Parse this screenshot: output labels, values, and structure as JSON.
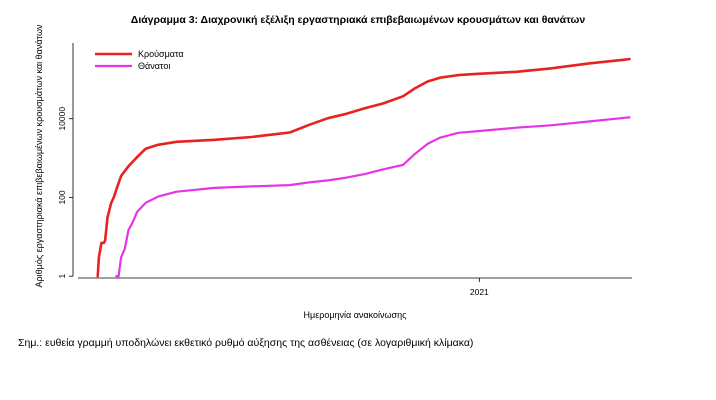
{
  "note": "Σημ.: ευθεία γραμμή υποδηλώνει εκθετικό ρυθμό αύξησης της ασθένειας (σε λογαριθμική κλίμακα)",
  "chart_data": {
    "type": "line",
    "title": "Διάγραμμα 3: Διαχρονική εξέλιξη εργαστηριακά επιβεβαιωμένων κρουσμάτων και θανάτων",
    "xlabel": "Ημερομηνία ανακοίνωσης",
    "ylabel": "Αριθμός εργαστηριακά επιβεβαιωμένων κρουσμάτων και θανάτων",
    "yscale": "log",
    "ylim": [
      0.8,
      1000000
    ],
    "xlim": [
      "2020-02-10",
      "2021-05-05"
    ],
    "x_ticks": [
      {
        "value": "2021-01-01",
        "label": "2021"
      }
    ],
    "y_ticks": [
      {
        "value": 1,
        "label": "1"
      },
      {
        "value": 100,
        "label": "100"
      },
      {
        "value": 10000,
        "label": "10000"
      }
    ],
    "legend_position": "top-left",
    "grid": false,
    "series": [
      {
        "name": "Κρούσματα",
        "color": "#e8231f",
        "points": [
          [
            "2020-02-26",
            1
          ],
          [
            "2020-02-27",
            3
          ],
          [
            "2020-02-29",
            7
          ],
          [
            "2020-03-02",
            7
          ],
          [
            "2020-03-03",
            8
          ],
          [
            "2020-03-05",
            31
          ],
          [
            "2020-03-08",
            73
          ],
          [
            "2020-03-10",
            99
          ],
          [
            "2020-03-13",
            190
          ],
          [
            "2020-03-16",
            350
          ],
          [
            "2020-03-22",
            624
          ],
          [
            "2020-03-29",
            1061
          ],
          [
            "2020-04-05",
            1735
          ],
          [
            "2020-04-15",
            2170
          ],
          [
            "2020-04-30",
            2591
          ],
          [
            "2020-05-31",
            2918
          ],
          [
            "2020-06-30",
            3432
          ],
          [
            "2020-07-15",
            3910
          ],
          [
            "2020-07-31",
            4477
          ],
          [
            "2020-08-15",
            6858
          ],
          [
            "2020-08-31",
            10317
          ],
          [
            "2020-09-15",
            13310
          ],
          [
            "2020-09-30",
            18475
          ],
          [
            "2020-10-15",
            24551
          ],
          [
            "2020-10-31",
            37196
          ],
          [
            "2020-11-10",
            60000
          ],
          [
            "2020-11-20",
            88000
          ],
          [
            "2020-11-30",
            110000
          ],
          [
            "2020-12-15",
            128000
          ],
          [
            "2020-12-31",
            138850
          ],
          [
            "2021-01-31",
            156000
          ],
          [
            "2021-02-28",
            190000
          ],
          [
            "2021-03-31",
            255000
          ],
          [
            "2021-04-30",
            318000
          ],
          [
            "2021-05-03",
            330000
          ]
        ]
      },
      {
        "name": "Θάνατοι",
        "color": "#e535e5",
        "points": [
          [
            "2020-03-12",
            1
          ],
          [
            "2020-03-14",
            1
          ],
          [
            "2020-03-16",
            3
          ],
          [
            "2020-03-19",
            5
          ],
          [
            "2020-03-22",
            15
          ],
          [
            "2020-03-25",
            22
          ],
          [
            "2020-03-29",
            43
          ],
          [
            "2020-04-05",
            73
          ],
          [
            "2020-04-15",
            105
          ],
          [
            "2020-04-30",
            140
          ],
          [
            "2020-05-31",
            175
          ],
          [
            "2020-06-30",
            191
          ],
          [
            "2020-07-31",
            206
          ],
          [
            "2020-08-15",
            240
          ],
          [
            "2020-08-31",
            271
          ],
          [
            "2020-09-15",
            320
          ],
          [
            "2020-09-30",
            393
          ],
          [
            "2020-10-15",
            520
          ],
          [
            "2020-10-31",
            673
          ],
          [
            "2020-11-10",
            1300
          ],
          [
            "2020-11-20",
            2300
          ],
          [
            "2020-11-30",
            3300
          ],
          [
            "2020-12-15",
            4400
          ],
          [
            "2020-12-31",
            4838
          ],
          [
            "2021-01-31",
            5900
          ],
          [
            "2021-02-28",
            6800
          ],
          [
            "2021-03-31",
            8500
          ],
          [
            "2021-04-30",
            10600
          ],
          [
            "2021-05-03",
            10800
          ]
        ]
      }
    ]
  }
}
